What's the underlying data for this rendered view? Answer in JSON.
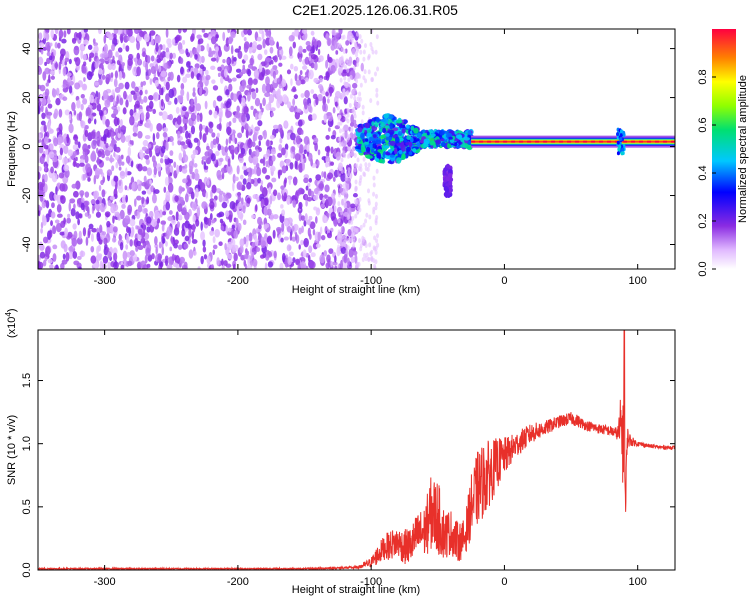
{
  "title": "C2E1.2025.126.06.31.R05",
  "colors": {
    "signal": "#e8302a",
    "spectrum_base": "#7a28e8",
    "axis": "#000000"
  },
  "colorbar": {
    "label": "Normalized spectral amplitude",
    "ticks": [
      "0.0",
      "0.2",
      "0.4",
      "0.6",
      "0.8"
    ],
    "tick_values": [
      0.0,
      0.2,
      0.4,
      0.6,
      0.8
    ],
    "range": [
      0,
      1
    ],
    "colormap": "rainbow (purple-white low to red high)"
  },
  "chart_data": [
    {
      "type": "heatmap",
      "title": "",
      "xlabel": "Height of straight line (km)",
      "ylabel": "Frequency (Hz)",
      "xlim": [
        -350,
        128
      ],
      "ylim": [
        -50,
        48
      ],
      "x_ticks": [
        -300,
        -200,
        -100,
        0,
        100
      ],
      "x_tick_labels": [
        "-300",
        "-200",
        "-100",
        "0",
        "100"
      ],
      "y_ticks": [
        -40,
        -20,
        0,
        20,
        40
      ],
      "y_tick_labels": [
        "-40",
        "-20",
        "0",
        "20",
        "40"
      ],
      "features": [
        {
          "x_range": [
            -350,
            -110
          ],
          "y_range": [
            -50,
            48
          ],
          "amplitude": 0.1
        },
        {
          "x_range": [
            -110,
            -25
          ],
          "y_center": 3,
          "y_spread": 8,
          "amplitude": 0.5
        },
        {
          "x_range": [
            -45,
            -40
          ],
          "y_range": [
            -20,
            -8
          ],
          "amplitude": 0.15
        },
        {
          "x_range": [
            -25,
            128
          ],
          "y_center": 2,
          "y_spread": 1,
          "amplitude": 0.95
        },
        {
          "x_range": [
            84,
            90
          ],
          "y_range": [
            -3,
            7
          ],
          "amplitude": 0.4
        }
      ]
    },
    {
      "type": "line",
      "title": "",
      "xlabel": "Height of straight line (km)",
      "ylabel": "SNR (10 * v/v)",
      "y_multiplier": "(x10",
      "y_multiplier_exp": "4",
      "y_multiplier_close": ")",
      "xlim": [
        -350,
        128
      ],
      "ylim": [
        0,
        1.9
      ],
      "x_ticks": [
        -300,
        -200,
        -100,
        0,
        100
      ],
      "x_tick_labels": [
        "-300",
        "-200",
        "-100",
        "0",
        "100"
      ],
      "y_ticks": [
        0,
        0.5,
        1.0,
        1.5
      ],
      "y_tick_labels": [
        "0.0",
        "0.5",
        "1.0",
        "1.5"
      ],
      "series": [
        {
          "x": [
            -350,
            -300,
            -250,
            -200,
            -150,
            -110,
            -100,
            -95,
            -90,
            -85,
            -80,
            -75,
            -70,
            -65,
            -60,
            -55,
            -50,
            -45,
            -40,
            -35,
            -30,
            -25,
            -20,
            -15,
            -10,
            -5,
            0,
            5,
            10,
            20,
            30,
            40,
            50,
            55,
            60,
            70,
            80,
            85,
            88,
            90,
            91,
            92,
            95,
            100,
            110,
            120,
            128
          ],
          "y": [
            0.01,
            0.01,
            0.01,
            0.01,
            0.01,
            0.02,
            0.06,
            0.12,
            0.18,
            0.2,
            0.22,
            0.18,
            0.2,
            0.28,
            0.3,
            0.45,
            0.42,
            0.28,
            0.3,
            0.22,
            0.25,
            0.5,
            0.65,
            0.72,
            0.78,
            0.85,
            0.9,
            0.95,
            1.0,
            1.08,
            1.12,
            1.17,
            1.2,
            1.18,
            1.15,
            1.12,
            1.1,
            1.08,
            1.12,
            0.95,
            0.4,
            1.05,
            1.02,
            1.0,
            0.98,
            0.97,
            0.97
          ],
          "noise": [
            0.005,
            0.005,
            0.005,
            0.005,
            0.005,
            0.01,
            0.04,
            0.08,
            0.1,
            0.12,
            0.12,
            0.14,
            0.15,
            0.18,
            0.2,
            0.3,
            0.3,
            0.2,
            0.18,
            0.16,
            0.15,
            0.25,
            0.3,
            0.3,
            0.25,
            0.2,
            0.15,
            0.12,
            0.1,
            0.08,
            0.06,
            0.05,
            0.05,
            0.05,
            0.04,
            0.04,
            0.04,
            0.05,
            0.35,
            0.4,
            0.3,
            0.1,
            0.04,
            0.02,
            0.015,
            0.015,
            0.015
          ],
          "peak": {
            "x": 90,
            "y": 1.9
          }
        }
      ]
    }
  ]
}
